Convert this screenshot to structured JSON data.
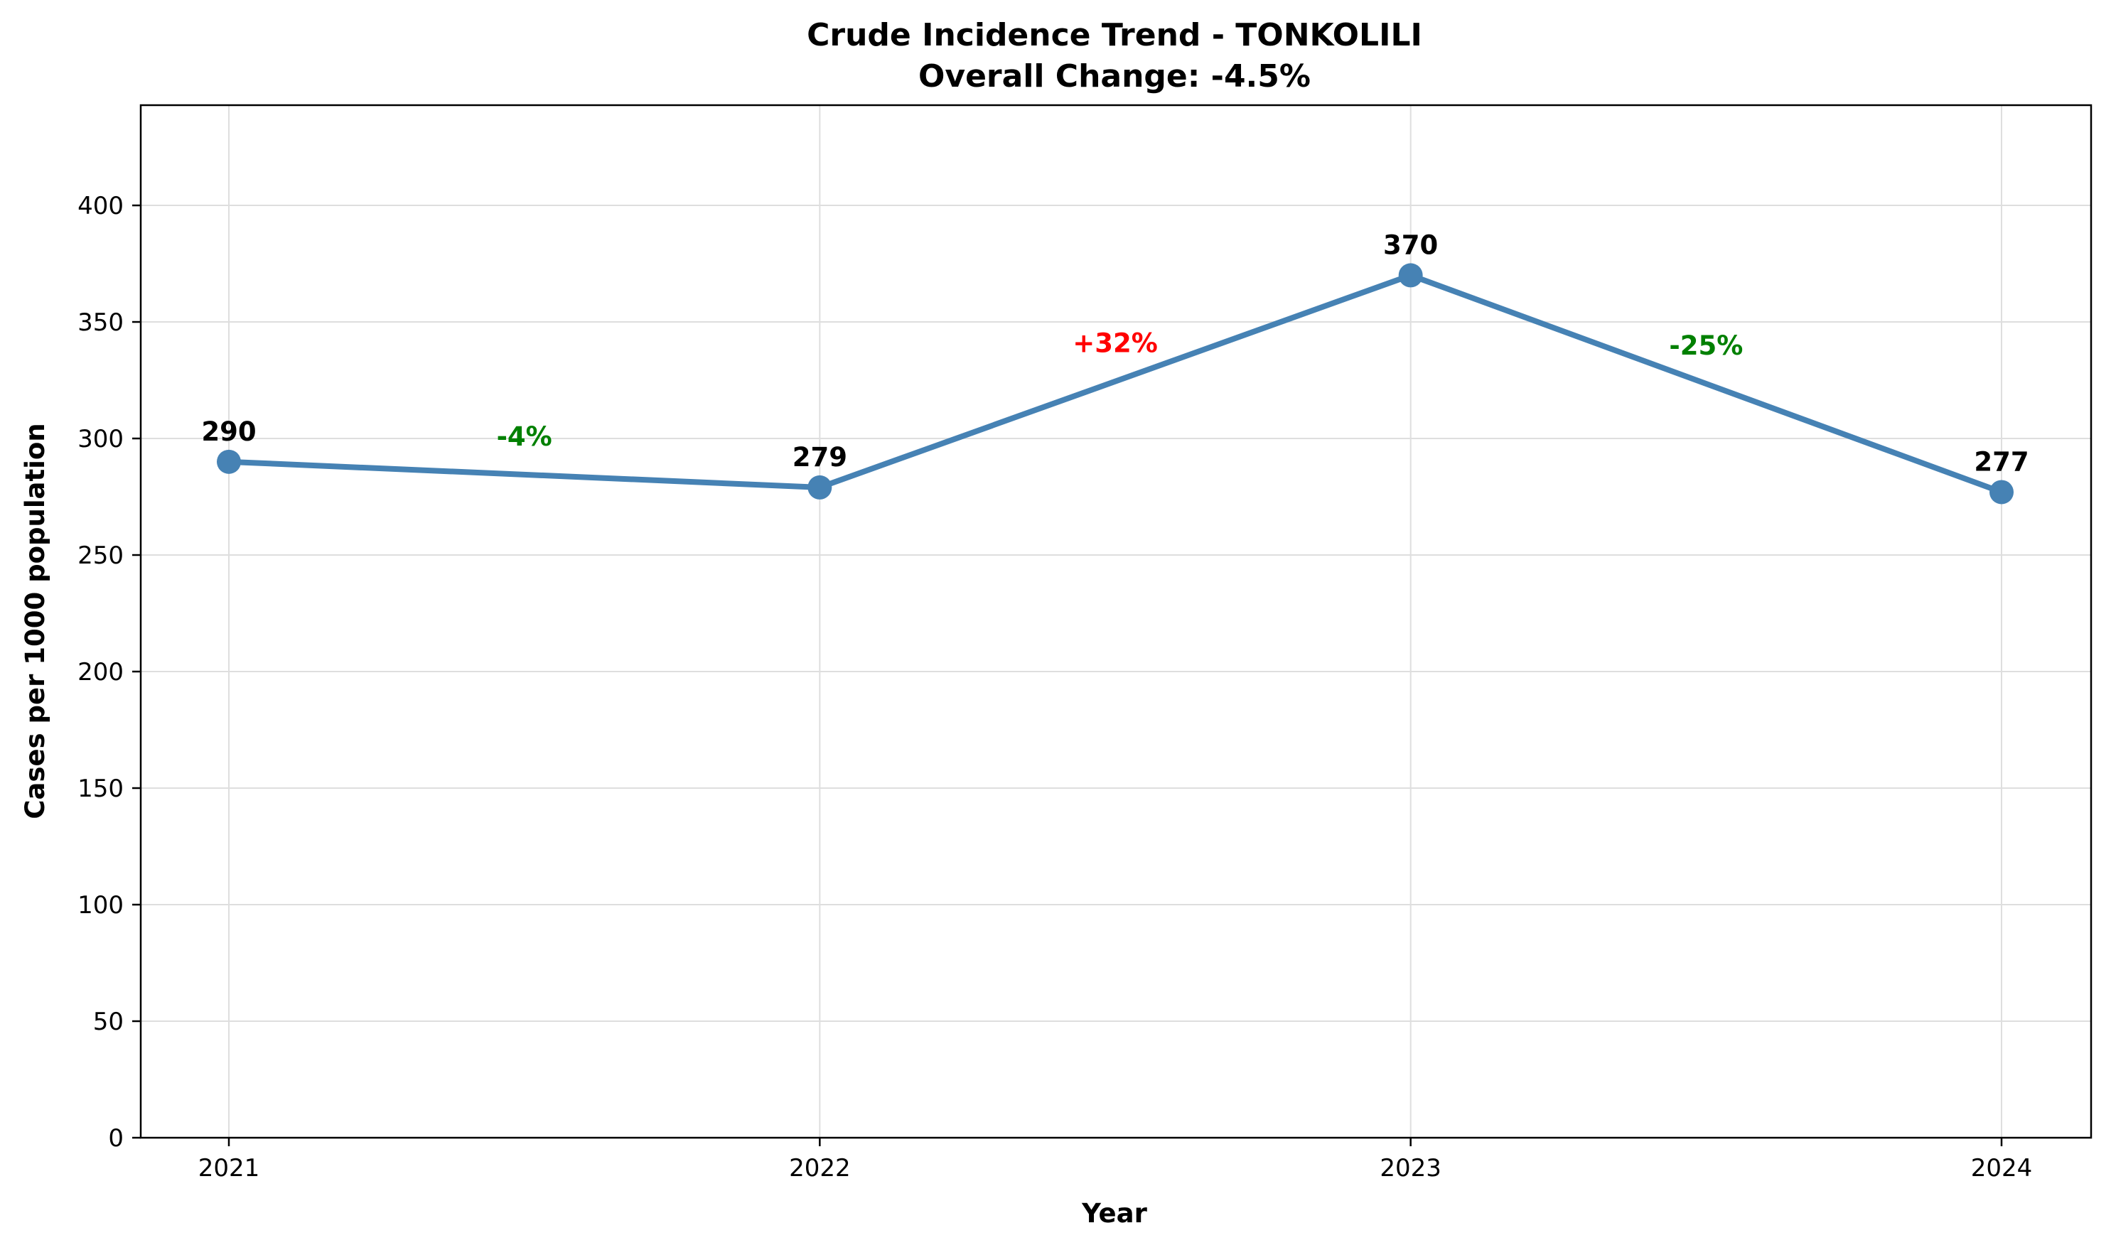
{
  "chart_data": {
    "type": "line",
    "title": "Crude Incidence Trend - TONKOLILI",
    "subtitle": "Overall Change: -4.5%",
    "xlabel": "Year",
    "ylabel": "Cases per 1000 population",
    "categories": [
      "2021",
      "2022",
      "2023",
      "2024"
    ],
    "series": [
      {
        "values": [
          290,
          279,
          370,
          277
        ],
        "color": "#4682b4"
      }
    ],
    "data_labels": [
      "290",
      "279",
      "370",
      "277"
    ],
    "change_labels": [
      {
        "text": "-4%",
        "color": "#008000"
      },
      {
        "text": "+32%",
        "color": "#ff0000"
      },
      {
        "text": "-25%",
        "color": "#008000"
      }
    ],
    "ylim": [
      0,
      443
    ],
    "yticks": [
      0,
      50,
      100,
      150,
      200,
      250,
      300,
      350,
      400
    ],
    "ytick_labels": [
      "0",
      "50",
      "100",
      "150",
      "200",
      "250",
      "300",
      "350",
      "400"
    ],
    "grid": true,
    "legend": "none"
  }
}
